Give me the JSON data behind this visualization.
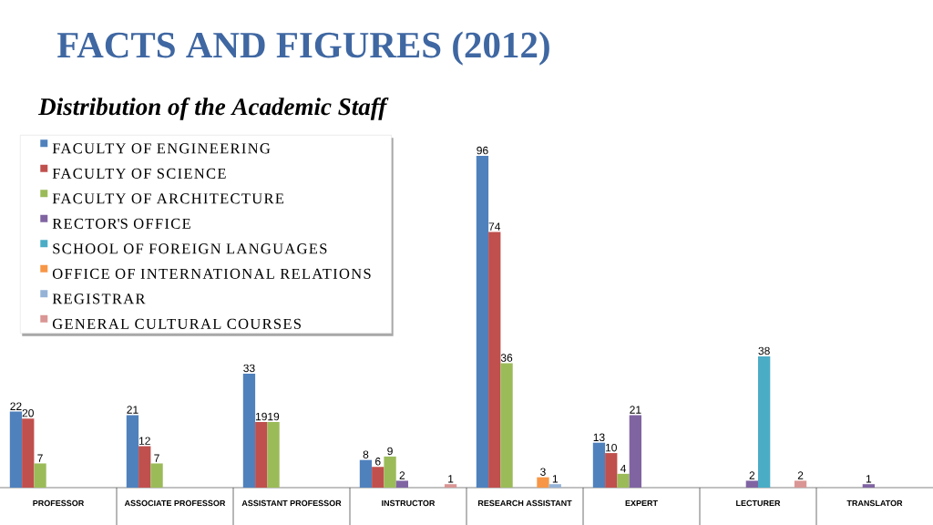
{
  "chart_data": {
    "type": "bar",
    "title": "FACTS AND FIGURES (2012)",
    "subtitle": "Distribution of the Academic Staff",
    "categories": [
      "PROFESSOR",
      "ASSOCIATE PROFESSOR",
      "ASSISTANT PROFESSOR",
      "INSTRUCTOR",
      "RESEARCH ASSISTANT",
      "EXPERT",
      "LECTURER",
      "TRANSLATOR"
    ],
    "series": [
      {
        "name": "FACULTY OF ENGINEERING",
        "color": "#4f81bd",
        "values": [
          22,
          21,
          33,
          8,
          96,
          13,
          null,
          null
        ]
      },
      {
        "name": "FACULTY OF SCIENCE",
        "color": "#c0504d",
        "values": [
          20,
          12,
          19,
          6,
          74,
          10,
          null,
          null
        ]
      },
      {
        "name": "FACULTY OF ARCHITECTURE",
        "color": "#9bbb59",
        "values": [
          7,
          7,
          19,
          9,
          36,
          4,
          null,
          null
        ]
      },
      {
        "name": "RECTOR'S OFFICE",
        "color": "#8064a2",
        "values": [
          null,
          null,
          null,
          2,
          null,
          21,
          2,
          1
        ]
      },
      {
        "name": "SCHOOL OF FOREIGN LANGUAGES",
        "color": "#4bacc6",
        "values": [
          null,
          null,
          null,
          null,
          null,
          null,
          38,
          null
        ]
      },
      {
        "name": "OFFICE OF INTERNATIONAL RELATIONS",
        "color": "#f79646",
        "values": [
          null,
          null,
          null,
          null,
          3,
          null,
          null,
          null
        ]
      },
      {
        "name": "REGISTRAR",
        "color": "#95b3d7",
        "values": [
          null,
          null,
          null,
          null,
          1,
          null,
          null,
          null
        ]
      },
      {
        "name": "GENERAL CULTURAL COURSES",
        "color": "#d99694",
        "values": [
          null,
          null,
          null,
          1,
          null,
          null,
          2,
          null
        ]
      }
    ],
    "data_labels": true,
    "legend": "top left"
  }
}
